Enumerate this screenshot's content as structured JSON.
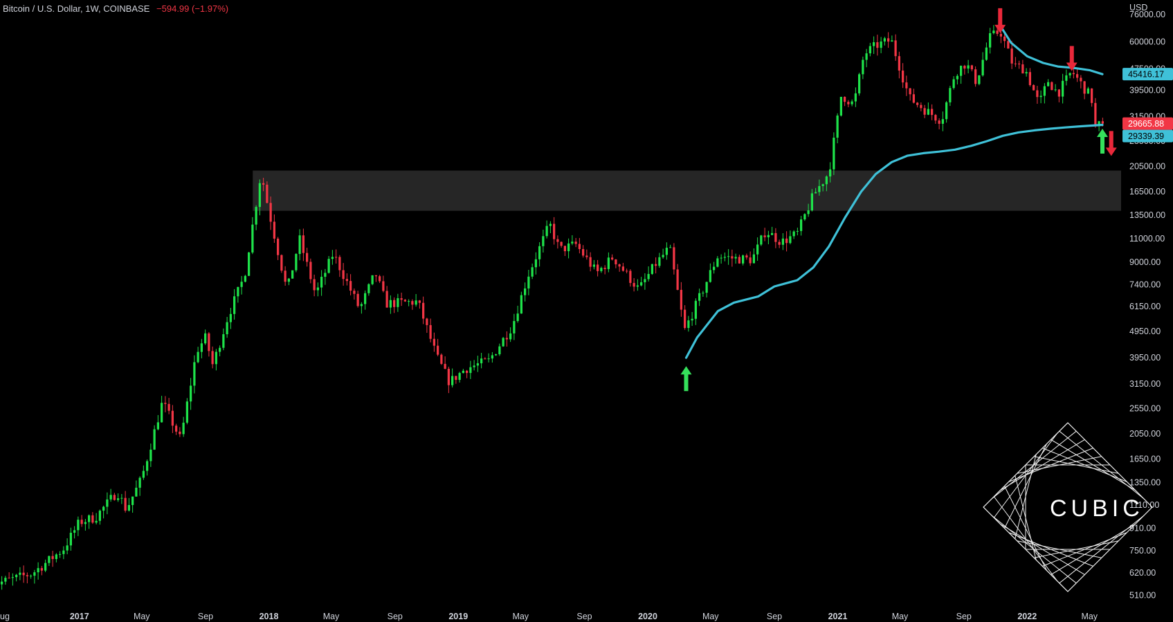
{
  "header": {
    "symbol": "Bitcoin / U.S. Dollar, 1W, COINBASE",
    "change": "−594.99 (−1.97%)"
  },
  "logo": {
    "text": "CUBIC"
  },
  "colors": {
    "background": "#000000",
    "up": "#1ee34a",
    "down": "#f23645",
    "ma": "#3fc1d8",
    "zone": "#262626",
    "arrow_up": "#35e05b",
    "arrow_down": "#e9283a"
  },
  "chart_data": {
    "type": "candlestick",
    "title": "Bitcoin / U.S. Dollar, 1W, COINBASE",
    "currency_label": "USD",
    "scale": "log",
    "ylim": [
      460,
      82000
    ],
    "xlim": [
      "2016-08-01",
      "2022-07-01"
    ],
    "y_ticks": [
      "76000.00",
      "60000.00",
      "47500.00",
      "39500.00",
      "31500.00",
      "25500.00",
      "20500.00",
      "16500.00",
      "13500.00",
      "11000.00",
      "9000.00",
      "7400.00",
      "6150.00",
      "4950.00",
      "3950.00",
      "3150.00",
      "2550.00",
      "2050.00",
      "1650.00",
      "1350.00",
      "1110.00",
      "910.00",
      "750.00",
      "620.00",
      "510.00"
    ],
    "x_ticks": [
      {
        "label": "ug",
        "date": "2016-08-01",
        "bold": false
      },
      {
        "label": "2017",
        "date": "2017-01-01",
        "bold": true
      },
      {
        "label": "May",
        "date": "2017-05-01",
        "bold": false
      },
      {
        "label": "Sep",
        "date": "2017-09-01",
        "bold": false
      },
      {
        "label": "2018",
        "date": "2018-01-01",
        "bold": true
      },
      {
        "label": "May",
        "date": "2018-05-01",
        "bold": false
      },
      {
        "label": "Sep",
        "date": "2018-09-01",
        "bold": false
      },
      {
        "label": "2019",
        "date": "2019-01-01",
        "bold": true
      },
      {
        "label": "May",
        "date": "2019-05-01",
        "bold": false
      },
      {
        "label": "Sep",
        "date": "2019-09-01",
        "bold": false
      },
      {
        "label": "2020",
        "date": "2020-01-01",
        "bold": true
      },
      {
        "label": "May",
        "date": "2020-05-01",
        "bold": false
      },
      {
        "label": "Sep",
        "date": "2020-09-01",
        "bold": false
      },
      {
        "label": "2021",
        "date": "2021-01-01",
        "bold": true
      },
      {
        "label": "May",
        "date": "2021-05-01",
        "bold": false
      },
      {
        "label": "Sep",
        "date": "2021-09-01",
        "bold": false
      },
      {
        "label": "2022",
        "date": "2022-01-01",
        "bold": true
      },
      {
        "label": "May",
        "date": "2022-05-01",
        "bold": false
      }
    ],
    "price_path": [
      [
        "2016-08-01",
        570
      ],
      [
        "2016-10-01",
        615
      ],
      [
        "2016-12-01",
        760
      ],
      [
        "2017-01-01",
        960
      ],
      [
        "2017-02-01",
        1000
      ],
      [
        "2017-03-15",
        1250
      ],
      [
        "2017-04-01",
        1070
      ],
      [
        "2017-05-01",
        1400
      ],
      [
        "2017-06-10",
        2700
      ],
      [
        "2017-07-15",
        1950
      ],
      [
        "2017-08-15",
        4200
      ],
      [
        "2017-09-01",
        4700
      ],
      [
        "2017-09-15",
        3700
      ],
      [
        "2017-10-15",
        5700
      ],
      [
        "2017-11-15",
        8000
      ],
      [
        "2017-12-17",
        19500
      ],
      [
        "2018-01-01",
        14000
      ],
      [
        "2018-02-05",
        7000
      ],
      [
        "2018-03-01",
        11000
      ],
      [
        "2018-04-01",
        6800
      ],
      [
        "2018-05-05",
        9700
      ],
      [
        "2018-06-25",
        6000
      ],
      [
        "2018-07-25",
        8200
      ],
      [
        "2018-08-15",
        6300
      ],
      [
        "2018-10-15",
        6400
      ],
      [
        "2018-11-20",
        4000
      ],
      [
        "2018-12-15",
        3200
      ],
      [
        "2019-01-15",
        3600
      ],
      [
        "2019-03-01",
        3850
      ],
      [
        "2019-04-15",
        5200
      ],
      [
        "2019-05-15",
        8000
      ],
      [
        "2019-06-26",
        12500
      ],
      [
        "2019-07-15",
        10000
      ],
      [
        "2019-08-15",
        10500
      ],
      [
        "2019-09-25",
        8200
      ],
      [
        "2019-10-26",
        9400
      ],
      [
        "2019-12-15",
        7100
      ],
      [
        "2020-01-15",
        8800
      ],
      [
        "2020-02-12",
        10200
      ],
      [
        "2020-03-12",
        5000
      ],
      [
        "2020-04-15",
        7000
      ],
      [
        "2020-05-15",
        9500
      ],
      [
        "2020-06-15",
        9300
      ],
      [
        "2020-07-20",
        9200
      ],
      [
        "2020-08-15",
        11800
      ],
      [
        "2020-09-15",
        10700
      ],
      [
        "2020-10-15",
        11500
      ],
      [
        "2020-11-15",
        16000
      ],
      [
        "2020-12-15",
        19500
      ],
      [
        "2021-01-08",
        38000
      ],
      [
        "2021-02-01",
        35000
      ],
      [
        "2021-02-21",
        54000
      ],
      [
        "2021-03-15",
        58000
      ],
      [
        "2021-04-14",
        61000
      ],
      [
        "2021-05-19",
        37000
      ],
      [
        "2021-06-22",
        33000
      ],
      [
        "2021-07-20",
        30500
      ],
      [
        "2021-08-15",
        46000
      ],
      [
        "2021-09-05",
        50000
      ],
      [
        "2021-09-25",
        42500
      ],
      [
        "2021-10-20",
        62000
      ],
      [
        "2021-11-10",
        66000
      ],
      [
        "2021-12-05",
        49000
      ],
      [
        "2021-12-28",
        47500
      ],
      [
        "2022-01-24",
        35000
      ],
      [
        "2022-02-10",
        43000
      ],
      [
        "2022-03-01",
        38500
      ],
      [
        "2022-03-28",
        46500
      ],
      [
        "2022-04-20",
        40500
      ],
      [
        "2022-05-05",
        37000
      ],
      [
        "2022-05-12",
        29000
      ],
      [
        "2022-05-26",
        29665.88
      ]
    ],
    "series": [
      {
        "points": [
          [
            "2020-03-15",
            3950
          ],
          [
            "2020-04-05",
            4700
          ],
          [
            "2020-05-15",
            5900
          ],
          [
            "2020-06-15",
            6350
          ],
          [
            "2020-08-01",
            6700
          ],
          [
            "2020-09-01",
            7300
          ],
          [
            "2020-10-15",
            7700
          ],
          [
            "2020-11-15",
            8600
          ],
          [
            "2020-12-15",
            10300
          ],
          [
            "2021-01-15",
            13200
          ],
          [
            "2021-02-15",
            16500
          ],
          [
            "2021-03-15",
            19200
          ],
          [
            "2021-04-15",
            21300
          ],
          [
            "2021-05-15",
            22500
          ],
          [
            "2021-06-15",
            23000
          ],
          [
            "2021-07-15",
            23300
          ],
          [
            "2021-08-15",
            23700
          ],
          [
            "2021-09-15",
            24500
          ],
          [
            "2021-10-15",
            25500
          ],
          [
            "2021-11-15",
            26700
          ],
          [
            "2021-12-15",
            27500
          ],
          [
            "2022-01-15",
            28000
          ],
          [
            "2022-02-15",
            28400
          ],
          [
            "2022-03-15",
            28700
          ],
          [
            "2022-04-15",
            29000
          ],
          [
            "2022-05-26",
            29339.39
          ]
        ],
        "last_value_label": "29339.39"
      },
      {
        "points": [
          [
            "2021-11-10",
            69000
          ],
          [
            "2021-12-01",
            59500
          ],
          [
            "2022-01-01",
            53000
          ],
          [
            "2022-02-01",
            50000
          ],
          [
            "2022-03-01",
            48500
          ],
          [
            "2022-04-01",
            47900
          ],
          [
            "2022-05-01",
            47000
          ],
          [
            "2022-05-26",
            45416.17
          ]
        ],
        "last_value_label": "45416.17"
      }
    ],
    "last_price_label": "29665.88",
    "zones": [
      {
        "from": "2017-12-01",
        "to": "2022-07-01",
        "low": 14000,
        "high": 19800
      }
    ],
    "arrows": [
      {
        "date": "2020-03-15",
        "value": 3300,
        "direction": "up",
        "color": "green"
      },
      {
        "date": "2021-11-10",
        "value": 72000,
        "direction": "down",
        "color": "red"
      },
      {
        "date": "2022-03-28",
        "value": 52000,
        "direction": "down",
        "color": "red"
      },
      {
        "date": "2022-05-26",
        "value": 25500,
        "direction": "up",
        "color": "green"
      },
      {
        "date": "2022-06-12",
        "value": 25000,
        "direction": "down",
        "color": "red"
      }
    ]
  }
}
